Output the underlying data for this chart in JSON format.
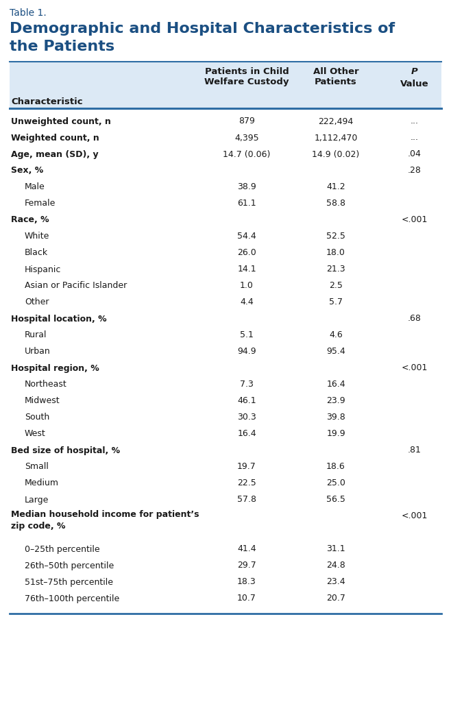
{
  "table_label": "Table 1.",
  "title_line1": "Demographic and Hospital Characteristics of",
  "title_line2": "the Patients",
  "rows": [
    {
      "label": "Unweighted count, n",
      "bold": true,
      "indent": false,
      "col1": "879",
      "col2": "222,494",
      "col3": "...",
      "multiline": false
    },
    {
      "label": "Weighted count, n",
      "bold": true,
      "indent": false,
      "col1": "4,395",
      "col2": "1,112,470",
      "col3": "...",
      "multiline": false
    },
    {
      "label": "Age, mean (SD), y",
      "bold": true,
      "indent": false,
      "col1": "14.7 (0.06)",
      "col2": "14.9 (0.02)",
      "col3": ".04",
      "multiline": false
    },
    {
      "label": "Sex, %",
      "bold": true,
      "indent": false,
      "col1": "",
      "col2": "",
      "col3": ".28",
      "multiline": false
    },
    {
      "label": "Male",
      "bold": false,
      "indent": true,
      "col1": "38.9",
      "col2": "41.2",
      "col3": "",
      "multiline": false
    },
    {
      "label": "Female",
      "bold": false,
      "indent": true,
      "col1": "61.1",
      "col2": "58.8",
      "col3": "",
      "multiline": false
    },
    {
      "label": "Race, %",
      "bold": true,
      "indent": false,
      "col1": "",
      "col2": "",
      "col3": "<.001",
      "multiline": false
    },
    {
      "label": "White",
      "bold": false,
      "indent": true,
      "col1": "54.4",
      "col2": "52.5",
      "col3": "",
      "multiline": false
    },
    {
      "label": "Black",
      "bold": false,
      "indent": true,
      "col1": "26.0",
      "col2": "18.0",
      "col3": "",
      "multiline": false
    },
    {
      "label": "Hispanic",
      "bold": false,
      "indent": true,
      "col1": "14.1",
      "col2": "21.3",
      "col3": "",
      "multiline": false
    },
    {
      "label": "Asian or Pacific Islander",
      "bold": false,
      "indent": true,
      "col1": "1.0",
      "col2": "2.5",
      "col3": "",
      "multiline": false
    },
    {
      "label": "Other",
      "bold": false,
      "indent": true,
      "col1": "4.4",
      "col2": "5.7",
      "col3": "",
      "multiline": false
    },
    {
      "label": "Hospital location, %",
      "bold": true,
      "indent": false,
      "col1": "",
      "col2": "",
      "col3": ".68",
      "multiline": false
    },
    {
      "label": "Rural",
      "bold": false,
      "indent": true,
      "col1": "5.1",
      "col2": "4.6",
      "col3": "",
      "multiline": false
    },
    {
      "label": "Urban",
      "bold": false,
      "indent": true,
      "col1": "94.9",
      "col2": "95.4",
      "col3": "",
      "multiline": false
    },
    {
      "label": "Hospital region, %",
      "bold": true,
      "indent": false,
      "col1": "",
      "col2": "",
      "col3": "<.001",
      "multiline": false
    },
    {
      "label": "Northeast",
      "bold": false,
      "indent": true,
      "col1": "7.3",
      "col2": "16.4",
      "col3": "",
      "multiline": false
    },
    {
      "label": "Midwest",
      "bold": false,
      "indent": true,
      "col1": "46.1",
      "col2": "23.9",
      "col3": "",
      "multiline": false
    },
    {
      "label": "South",
      "bold": false,
      "indent": true,
      "col1": "30.3",
      "col2": "39.8",
      "col3": "",
      "multiline": false
    },
    {
      "label": "West",
      "bold": false,
      "indent": true,
      "col1": "16.4",
      "col2": "19.9",
      "col3": "",
      "multiline": false
    },
    {
      "label": "Bed size of hospital, %",
      "bold": true,
      "indent": false,
      "col1": "",
      "col2": "",
      "col3": ".81",
      "multiline": false
    },
    {
      "label": "Small",
      "bold": false,
      "indent": true,
      "col1": "19.7",
      "col2": "18.6",
      "col3": "",
      "multiline": false
    },
    {
      "label": "Medium",
      "bold": false,
      "indent": true,
      "col1": "22.5",
      "col2": "25.0",
      "col3": "",
      "multiline": false
    },
    {
      "label": "Large",
      "bold": false,
      "indent": true,
      "col1": "57.8",
      "col2": "56.5",
      "col3": "",
      "multiline": false
    },
    {
      "label": "Median household income for patient’s\nzip code, %",
      "bold": true,
      "indent": false,
      "col1": "",
      "col2": "",
      "col3": "<.001",
      "multiline": true
    },
    {
      "label": "0–25th percentile",
      "bold": false,
      "indent": true,
      "col1": "41.4",
      "col2": "31.1",
      "col3": "",
      "multiline": false
    },
    {
      "label": "26th–50th percentile",
      "bold": false,
      "indent": true,
      "col1": "29.7",
      "col2": "24.8",
      "col3": "",
      "multiline": false
    },
    {
      "label": "51st–75th percentile",
      "bold": false,
      "indent": true,
      "col1": "18.3",
      "col2": "23.4",
      "col3": "",
      "multiline": false
    },
    {
      "label": "76th–100th percentile",
      "bold": false,
      "indent": true,
      "col1": "10.7",
      "col2": "20.7",
      "col3": "",
      "multiline": false
    }
  ],
  "header_bg": "#dce9f5",
  "bg_color": "#ffffff",
  "title_color": "#1b4f82",
  "table_label_color": "#1b4f82",
  "text_color": "#1a1a1a",
  "line_color": "#2e6da4",
  "header_text_color": "#1a1a1a",
  "fig_width": 6.58,
  "fig_height": 10.24,
  "dpi": 100
}
